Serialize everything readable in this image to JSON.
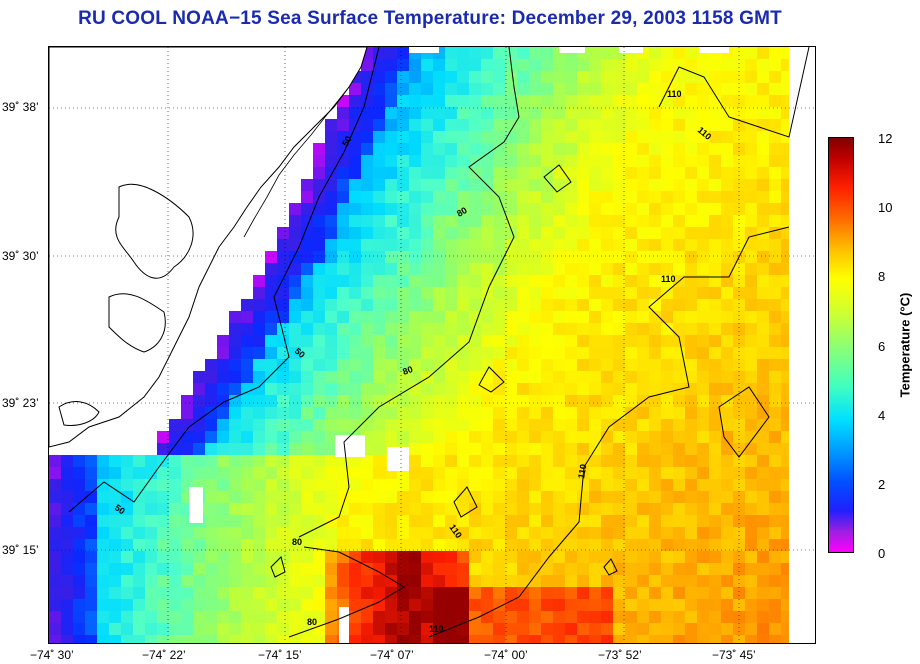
{
  "title": "RU COOL  NOAA−15  Sea Surface Temperature:  December 29, 2003 1158 GMT",
  "colors": {
    "title": "#1a2bb0",
    "contour": "#000000",
    "coast": "#000000",
    "land": "#ffffff"
  },
  "latitude_labels": [
    "39˚ 38’",
    "39˚ 30’",
    "39˚ 23’",
    "39˚ 15’"
  ],
  "longitude_labels": [
    "−74˚ 30’",
    "−74˚ 22’",
    "−74˚ 15’",
    "−74˚ 07’",
    "−74˚ 00’",
    "−73˚ 52’",
    "−73˚ 45’"
  ],
  "colorbar": {
    "title": "Temperature (°C)",
    "ticks": [
      "12",
      "10",
      "8",
      "6",
      "4",
      "2",
      "0"
    ],
    "range": [
      0,
      12
    ]
  },
  "contour_labels": [
    "50",
    "50",
    "50",
    "80",
    "80",
    "80",
    "80",
    "110",
    "110",
    "110",
    "110",
    "110"
  ]
}
